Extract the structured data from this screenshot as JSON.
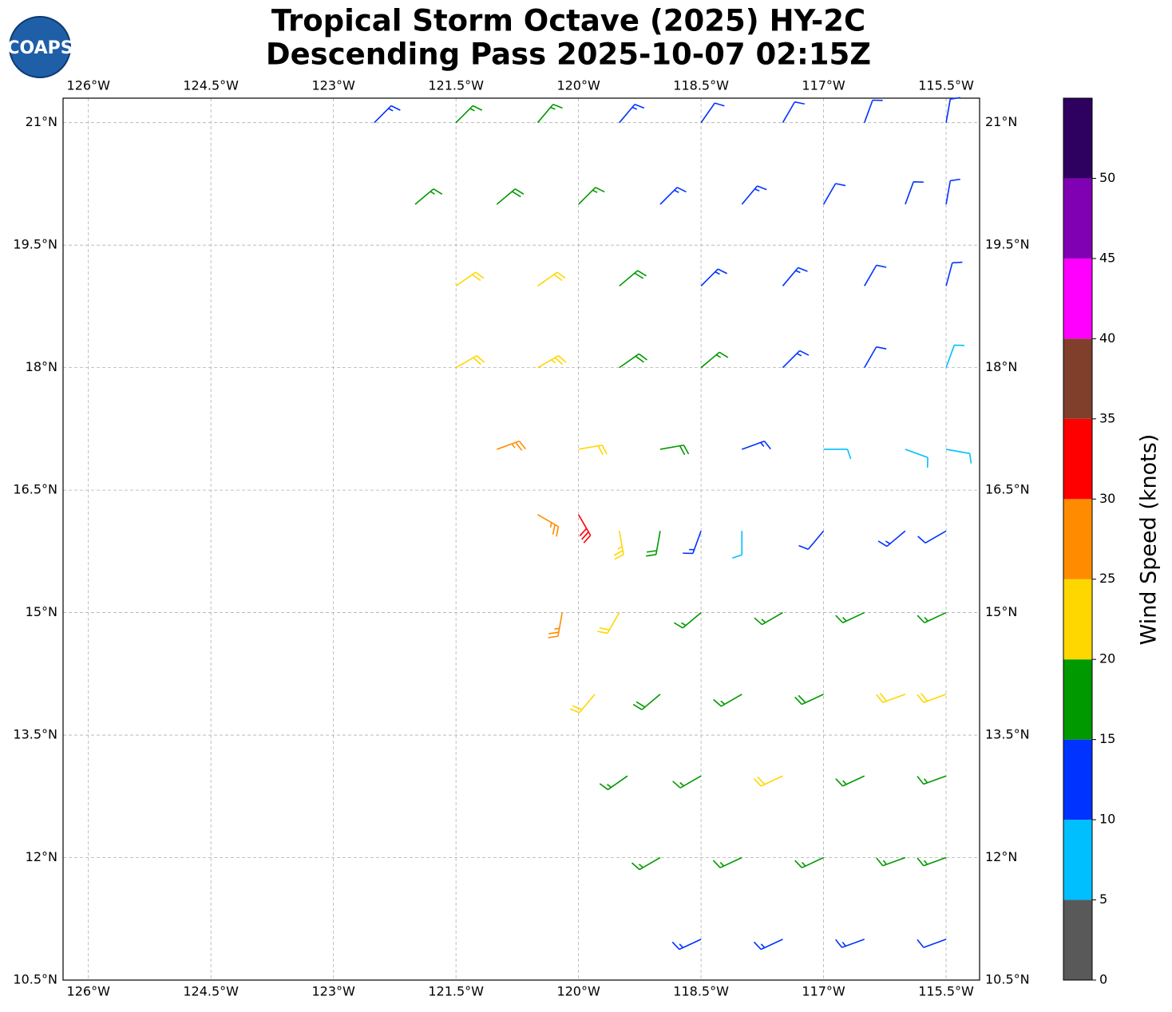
{
  "logo": "COAPS",
  "chart_data": {
    "type": "barbs",
    "title": "Tropical Storm Octave (2025) HY-2C",
    "subtitle": "Descending Pass 2025-10-07 02:15Z",
    "xlim": [
      -126.31,
      -115.09
    ],
    "ylim": [
      10.5,
      21.3
    ],
    "xticks": [
      {
        "value": -126,
        "label": "126°W"
      },
      {
        "value": -124.5,
        "label": "124.5°W"
      },
      {
        "value": -123,
        "label": "123°W"
      },
      {
        "value": -121.5,
        "label": "121.5°W"
      },
      {
        "value": -120,
        "label": "120°W"
      },
      {
        "value": -118.5,
        "label": "118.5°W"
      },
      {
        "value": -117,
        "label": "117°W"
      },
      {
        "value": -115.5,
        "label": "115.5°W"
      }
    ],
    "yticks": [
      {
        "value": 10.5,
        "label": "10.5°N"
      },
      {
        "value": 12,
        "label": "12°N"
      },
      {
        "value": 13.5,
        "label": "13.5°N"
      },
      {
        "value": 15,
        "label": "15°N"
      },
      {
        "value": 16.5,
        "label": "16.5°N"
      },
      {
        "value": 18,
        "label": "18°N"
      },
      {
        "value": 19.5,
        "label": "19.5°N"
      },
      {
        "value": 21,
        "label": "21°N"
      }
    ],
    "grid": true,
    "barbs": {
      "lon": [
        -122.5,
        -121.5,
        -120.5,
        -119.5,
        -118.5,
        -117.5,
        -116.5,
        -115.5,
        -122,
        -121,
        -120,
        -119,
        -118,
        -117,
        -116,
        -115.5,
        -121.5,
        -120.5,
        -119.5,
        -118.5,
        -117.5,
        -116.5,
        -115.5,
        -121.5,
        -120.5,
        -119.5,
        -118.5,
        -117.5,
        -116.5,
        -115.5,
        -121,
        -120,
        -119,
        -118,
        -117,
        -116,
        -115.5,
        -120.5,
        -120,
        -119.5,
        -119,
        -118.5,
        -118,
        -117,
        -116,
        -115.5,
        -120.2,
        -119.5,
        -118.5,
        -117.5,
        -116.5,
        -115.5,
        -119.8,
        -119,
        -118,
        -117,
        -116,
        -115.5,
        -119.4,
        -118.5,
        -117.5,
        -116.5,
        -115.5,
        -119,
        -118,
        -117,
        -116,
        -115.5,
        -118.5,
        -117.5,
        -116.5,
        -115.5
      ],
      "lat": [
        21,
        21,
        21,
        21,
        21,
        21,
        21,
        21,
        20,
        20,
        20,
        20,
        20,
        20,
        20,
        20,
        19,
        19,
        19,
        19,
        19,
        19,
        19,
        18,
        18,
        18,
        18,
        18,
        18,
        18,
        17,
        17,
        17,
        17,
        17,
        17,
        17,
        16.2,
        16.2,
        16,
        16,
        16,
        16,
        16,
        16,
        16,
        15,
        15,
        15,
        15,
        15,
        15,
        14,
        14,
        14,
        14,
        14,
        14,
        13,
        13,
        13,
        13,
        13,
        12,
        12,
        12,
        12,
        12,
        11,
        11,
        11,
        11
      ],
      "speed": [
        14,
        17,
        16,
        13,
        12,
        11,
        12,
        11,
        17,
        18,
        17,
        14,
        13,
        12,
        12,
        11,
        22,
        22,
        18,
        14,
        13,
        12,
        12,
        22,
        23,
        19,
        16,
        13,
        11,
        9,
        27,
        22,
        18,
        14,
        8,
        8,
        8,
        27,
        32,
        24,
        18,
        13,
        9,
        12,
        13,
        12,
        27,
        22,
        17,
        17,
        17,
        17,
        22,
        18,
        17,
        19,
        22,
        21,
        17,
        17,
        21,
        17,
        17,
        16,
        16,
        16,
        16,
        17,
        13,
        13,
        13,
        12
      ],
      "direction": [
        45,
        45,
        40,
        40,
        35,
        30,
        20,
        10,
        50,
        50,
        45,
        45,
        40,
        30,
        20,
        10,
        55,
        55,
        50,
        45,
        40,
        30,
        15,
        60,
        60,
        55,
        50,
        45,
        30,
        20,
        70,
        80,
        80,
        70,
        90,
        110,
        100,
        120,
        150,
        170,
        190,
        200,
        180,
        220,
        230,
        240,
        190,
        210,
        230,
        240,
        245,
        245,
        220,
        230,
        240,
        245,
        250,
        250,
        235,
        240,
        245,
        245,
        250,
        240,
        245,
        245,
        250,
        250,
        245,
        245,
        250,
        250
      ]
    },
    "colorbar": {
      "label": "Wind Speed (knots)",
      "bounds": [
        0,
        5,
        10,
        15,
        20,
        25,
        30,
        35,
        40,
        45,
        50,
        55
      ],
      "colors": [
        "#595959",
        "#00bfff",
        "#0033ff",
        "#009900",
        "#ffd700",
        "#ff8c00",
        "#ff0000",
        "#803f2b",
        "#ff00ff",
        "#8000b3",
        "#2e0060"
      ],
      "ticks": [
        0,
        5,
        10,
        15,
        20,
        25,
        30,
        35,
        40,
        45,
        50
      ]
    }
  }
}
